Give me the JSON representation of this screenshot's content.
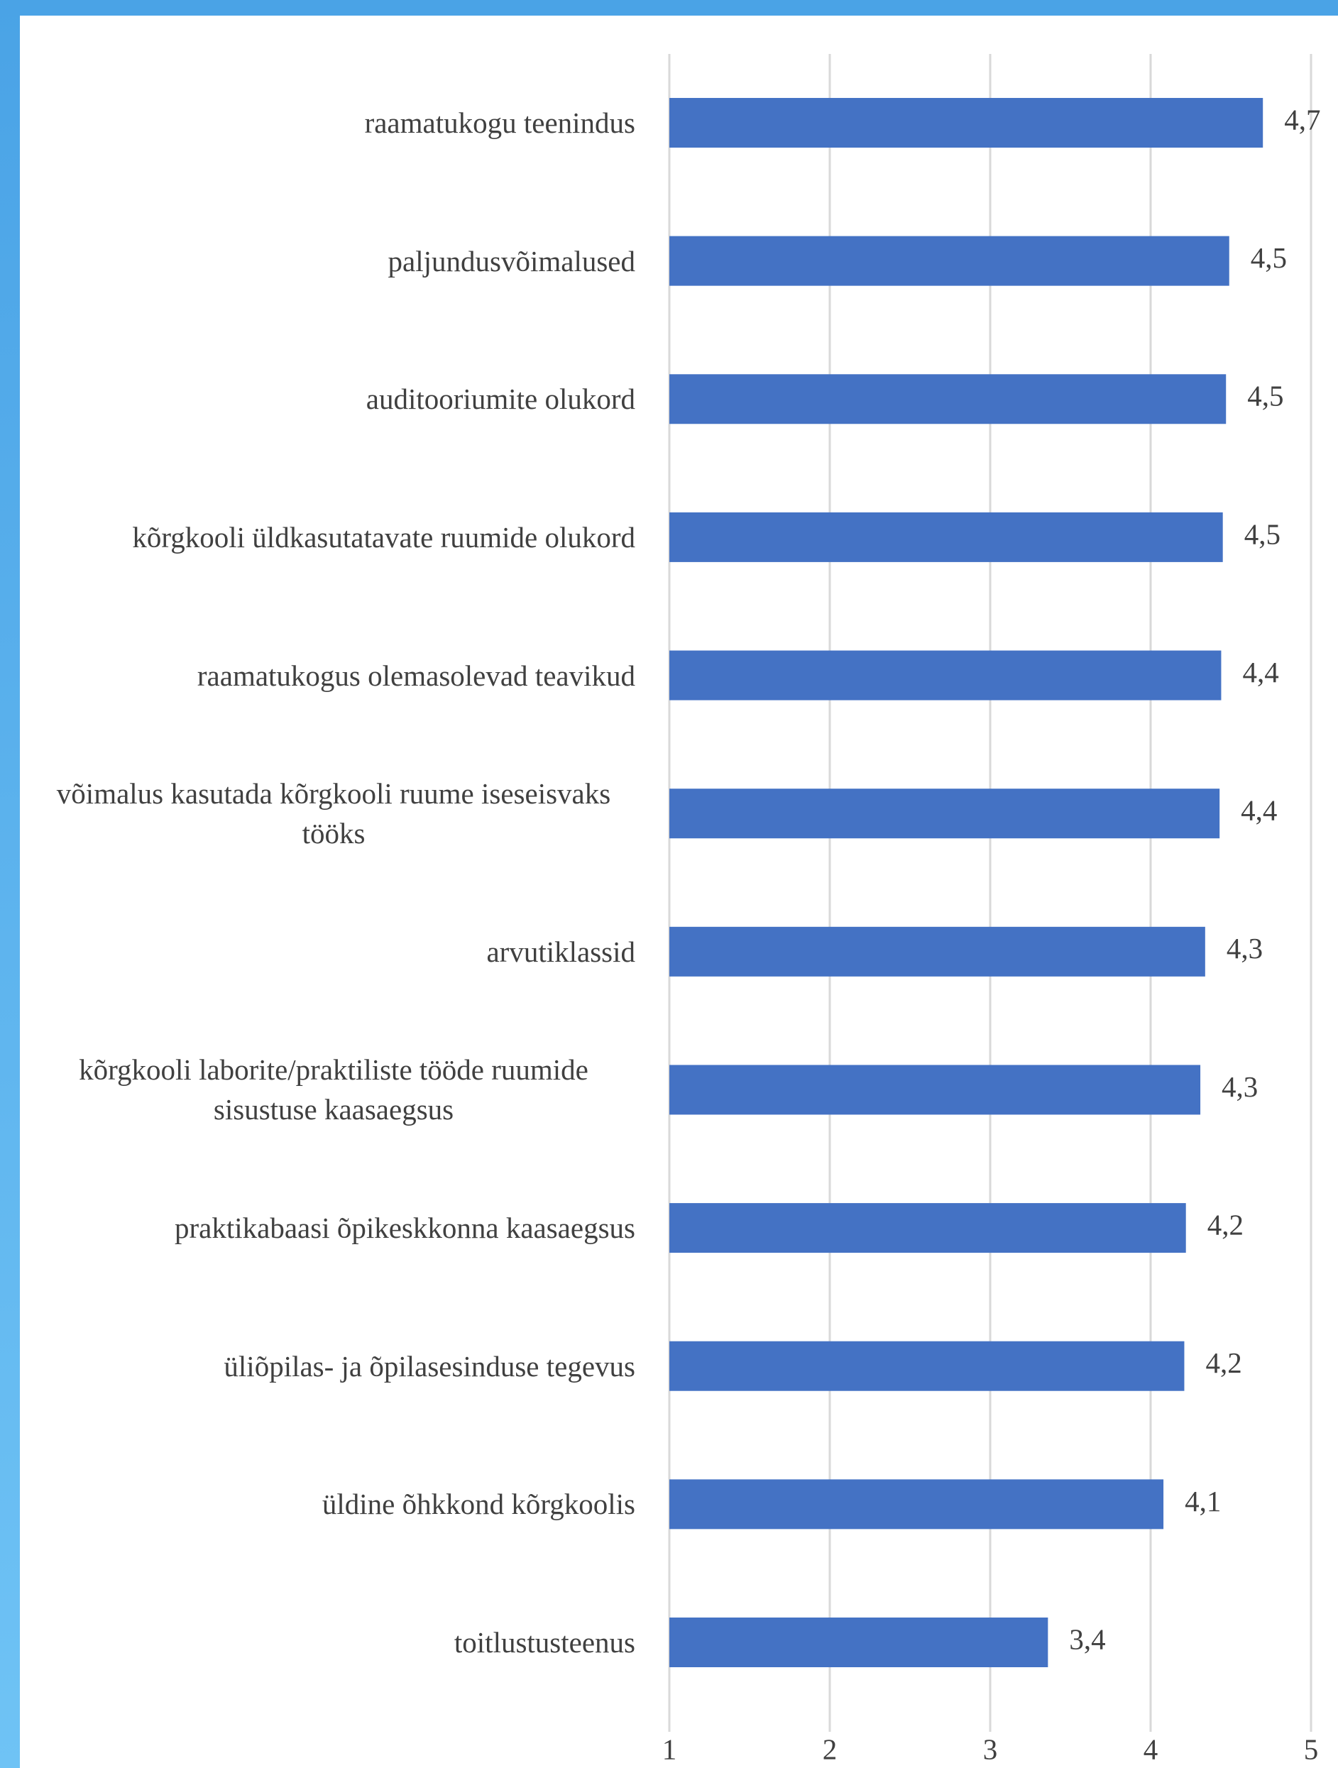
{
  "chart_data": {
    "type": "barh",
    "categories": [
      "raamatukogu teenindus",
      "paljundusvõimalused",
      "auditooriumite olukord",
      "kõrgkooli üldkasutatavate ruumide olukord",
      "raamatukogus olemasolevad teavikud",
      "võimalus kasutada kõrgkooli ruume iseseisvaks tööks",
      "arvutiklassid",
      "kõrgkooli laborite/praktiliste tööde ruumide sisustuse kaasaegsus",
      "praktikabaasi õpikeskkonna kaasaegsus",
      "üliõpilas- ja õpilasesinduse tegevus",
      "üldine õhkkond kõrgkoolis",
      "toitlustusteenus"
    ],
    "values": [
      4.7,
      4.49,
      4.47,
      4.45,
      4.44,
      4.43,
      4.34,
      4.31,
      4.22,
      4.21,
      4.08,
      3.36
    ],
    "value_labels": [
      "4,7",
      "4,5",
      "4,5",
      "4,5",
      "4,4",
      "4,4",
      "4,3",
      "4,3",
      "4,2",
      "4,2",
      "4,1",
      "3,4"
    ],
    "color": "#4472c4",
    "xlim": [
      1,
      5
    ],
    "xticks": [
      1,
      2,
      3,
      4,
      5
    ],
    "grid": true
  }
}
